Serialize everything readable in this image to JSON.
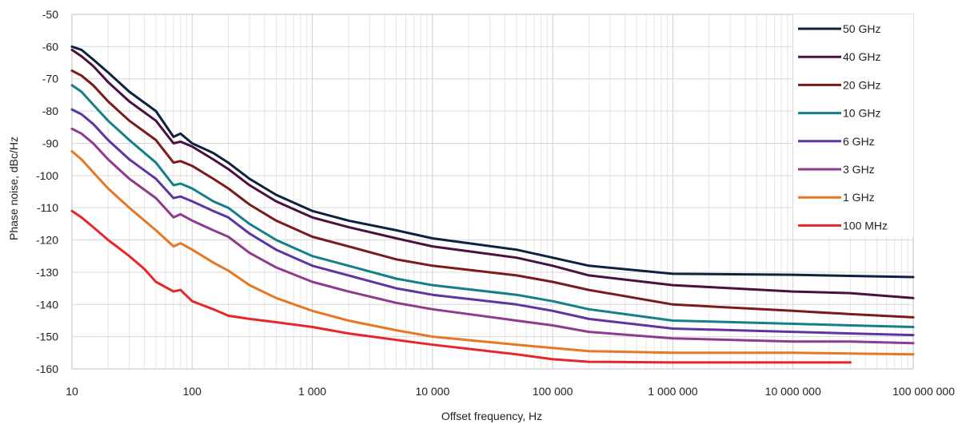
{
  "chart_data": {
    "type": "line",
    "title": "",
    "xlabel": "Offset frequency, Hz",
    "ylabel": "Phase noise, dBc/Hz",
    "x_scale": "log",
    "xlim": [
      10,
      100000000
    ],
    "ylim": [
      -160,
      -50
    ],
    "x_ticks": [
      {
        "value": 10,
        "label": "10"
      },
      {
        "value": 100,
        "label": "100"
      },
      {
        "value": 1000,
        "label": "1 000"
      },
      {
        "value": 10000,
        "label": "10 000"
      },
      {
        "value": 100000,
        "label": "100 000"
      },
      {
        "value": 1000000,
        "label": "1 000 000"
      },
      {
        "value": 10000000,
        "label": "10 000 000"
      },
      {
        "value": 100000000,
        "label": "100 000 000"
      }
    ],
    "y_ticks": [
      {
        "value": -50,
        "label": "-50"
      },
      {
        "value": -60,
        "label": "-60"
      },
      {
        "value": -70,
        "label": "-70"
      },
      {
        "value": -80,
        "label": "-80"
      },
      {
        "value": -90,
        "label": "-90"
      },
      {
        "value": -100,
        "label": "-100"
      },
      {
        "value": -110,
        "label": "-110"
      },
      {
        "value": -120,
        "label": "-120"
      },
      {
        "value": -130,
        "label": "-130"
      },
      {
        "value": -140,
        "label": "-140"
      },
      {
        "value": -150,
        "label": "-150"
      },
      {
        "value": -160,
        "label": "-160"
      }
    ],
    "grid": true,
    "legend_position": "top-right",
    "series": [
      {
        "name": "50 GHz",
        "color": "#0d2240",
        "x": [
          10,
          12,
          15,
          20,
          30,
          50,
          70,
          80,
          100,
          150,
          200,
          300,
          500,
          1000,
          2000,
          5000,
          10000,
          50000,
          100000,
          200000,
          1000000,
          10000000,
          100000000
        ],
        "y": [
          -60,
          -61,
          -64,
          -68,
          -74,
          -80,
          -88,
          -87,
          -90,
          -93,
          -96,
          -101,
          -106,
          -111,
          -114,
          -117,
          -119.5,
          -123,
          -125.5,
          -128,
          -130.5,
          -130.8,
          -131.5
        ]
      },
      {
        "name": "40 GHz",
        "color": "#4a1040",
        "x": [
          10,
          12,
          15,
          20,
          30,
          50,
          70,
          80,
          100,
          150,
          200,
          300,
          500,
          1000,
          2000,
          5000,
          10000,
          50000,
          100000,
          200000,
          1000000,
          10000000,
          30000000,
          100000000
        ],
        "y": [
          -61,
          -63,
          -66,
          -71,
          -77,
          -83,
          -90,
          -89.5,
          -91,
          -95,
          -98,
          -103,
          -108,
          -113,
          -116,
          -119.5,
          -122,
          -125.5,
          -128,
          -131,
          -134,
          -136,
          -136.5,
          -138
        ]
      },
      {
        "name": "20 GHz",
        "color": "#7b1a1a",
        "x": [
          10,
          12,
          15,
          20,
          30,
          50,
          70,
          80,
          100,
          150,
          200,
          300,
          500,
          1000,
          2000,
          5000,
          10000,
          50000,
          100000,
          200000,
          1000000,
          10000000,
          30000000,
          100000000
        ],
        "y": [
          -67.5,
          -69,
          -72,
          -77,
          -83,
          -89,
          -96,
          -95.5,
          -97,
          -101,
          -104,
          -109,
          -114,
          -119,
          -122,
          -126,
          -128,
          -131,
          -133,
          -135.5,
          -140,
          -142,
          -143,
          -144
        ]
      },
      {
        "name": "10 GHz",
        "color": "#138086",
        "x": [
          10,
          12,
          15,
          20,
          30,
          50,
          70,
          80,
          100,
          150,
          200,
          300,
          500,
          1000,
          2000,
          5000,
          10000,
          50000,
          100000,
          200000,
          1000000,
          10000000,
          30000000,
          100000000
        ],
        "y": [
          -72,
          -74,
          -78,
          -83,
          -89,
          -96,
          -103,
          -102.5,
          -104,
          -108,
          -110,
          -115,
          -120,
          -125,
          -128,
          -132,
          -134,
          -137,
          -139,
          -141.5,
          -145,
          -146,
          -146.5,
          -147
        ]
      },
      {
        "name": "6 GHz",
        "color": "#5e35a0",
        "x": [
          10,
          12,
          15,
          20,
          30,
          50,
          70,
          80,
          100,
          150,
          200,
          300,
          500,
          1000,
          2000,
          5000,
          10000,
          50000,
          100000,
          200000,
          1000000,
          10000000,
          30000000,
          100000000
        ],
        "y": [
          -79.5,
          -81,
          -84,
          -89,
          -95,
          -101,
          -107,
          -106.5,
          -108,
          -111,
          -113,
          -118,
          -123,
          -128,
          -131,
          -135,
          -137,
          -140,
          -142,
          -144.5,
          -147.5,
          -148.5,
          -149,
          -149.5
        ]
      },
      {
        "name": "3 GHz",
        "color": "#8e3a8e",
        "x": [
          10,
          12,
          15,
          20,
          30,
          50,
          70,
          80,
          100,
          150,
          200,
          300,
          500,
          1000,
          2000,
          5000,
          10000,
          50000,
          100000,
          200000,
          1000000,
          10000000,
          30000000,
          100000000
        ],
        "y": [
          -85.5,
          -87,
          -90,
          -95,
          -101,
          -107,
          -113,
          -112,
          -114,
          -117,
          -119,
          -124,
          -128.5,
          -133,
          -136,
          -139.5,
          -141.5,
          -145,
          -146.5,
          -148.5,
          -150.5,
          -151.5,
          -151.5,
          -152
        ]
      },
      {
        "name": "1 GHz",
        "color": "#e87722",
        "x": [
          10,
          12,
          15,
          20,
          30,
          50,
          70,
          80,
          100,
          150,
          200,
          300,
          500,
          1000,
          2000,
          5000,
          10000,
          50000,
          100000,
          200000,
          1000000,
          10000000,
          100000000
        ],
        "y": [
          -92.5,
          -95,
          -99,
          -104,
          -110,
          -117,
          -122,
          -121,
          -123,
          -127,
          -129.5,
          -134,
          -138,
          -142,
          -145,
          -148,
          -150,
          -152.5,
          -153.5,
          -154.5,
          -155,
          -155,
          -155.5
        ]
      },
      {
        "name": "100 MHz",
        "color": "#e8262a",
        "x": [
          10,
          12,
          15,
          20,
          30,
          40,
          50,
          70,
          80,
          100,
          150,
          200,
          300,
          500,
          1000,
          2000,
          5000,
          10000,
          50000,
          100000,
          200000,
          1000000,
          10000000,
          30000000
        ],
        "y": [
          -111,
          -113,
          -116,
          -120,
          -125,
          -129,
          -133,
          -136,
          -135.5,
          -139,
          -141.5,
          -143.5,
          -144.5,
          -145.5,
          -147,
          -149,
          -151,
          -152.5,
          -155.5,
          -157,
          -157.8,
          -158,
          -158,
          -158
        ]
      }
    ]
  }
}
